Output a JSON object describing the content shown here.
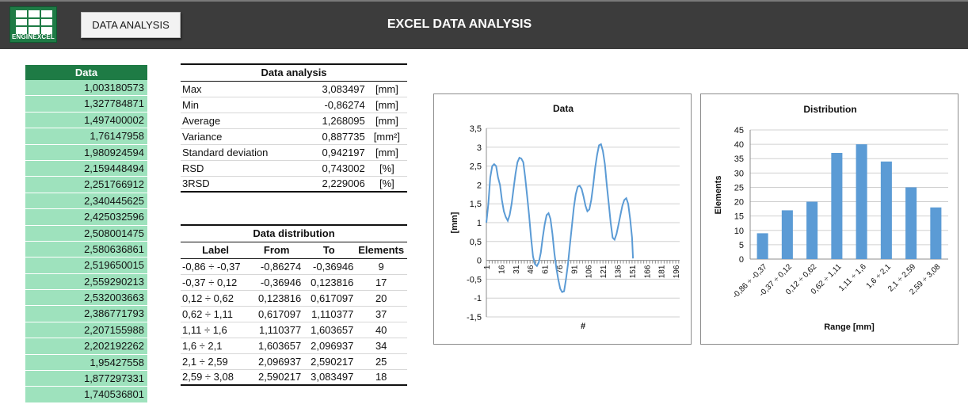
{
  "header": {
    "logo_text": "ENGINEXCEL",
    "button_label": "DATA ANALYSIS",
    "title": "EXCEL DATA ANALYSIS"
  },
  "colors": {
    "header_bg": "#3c3c3c",
    "brand_green": "#1e7b45",
    "data_cell_bg": "#9ee2bd",
    "series_blue": "#5b9bd5"
  },
  "data_column": {
    "header": "Data",
    "values": [
      "1,003180573",
      "1,327784871",
      "1,497400002",
      "1,76147958",
      "1,980924594",
      "2,159448494",
      "2,251766912",
      "2,340445625",
      "2,425032596",
      "2,508001475",
      "2,580636861",
      "2,519650015",
      "2,559290213",
      "2,532003663",
      "2,386771793",
      "2,207155988",
      "2,202192262",
      "1,95427558",
      "1,877297331",
      "1,740536801"
    ]
  },
  "analysis": {
    "title": "Data analysis",
    "rows": [
      {
        "label": "Max",
        "value": "3,083497",
        "unit": "[mm]"
      },
      {
        "label": "Min",
        "value": "-0,86274",
        "unit": "[mm]"
      },
      {
        "label": "Average",
        "value": "1,268095",
        "unit": "[mm]"
      },
      {
        "label": "Variance",
        "value": "0,887735",
        "unit": "[mm²]"
      },
      {
        "label": "Standard deviation",
        "value": "0,942197",
        "unit": "[mm]"
      },
      {
        "label": "RSD",
        "value": "0,743002",
        "unit": "[%]"
      },
      {
        "label": "3RSD",
        "value": "2,229006",
        "unit": "[%]"
      }
    ]
  },
  "distribution": {
    "title": "Data distribution",
    "columns": [
      "Label",
      "From",
      "To",
      "Elements"
    ],
    "rows": [
      {
        "label": "-0,86 ÷ -0,37",
        "from": "-0,86274",
        "to": "-0,36946",
        "elements": "9"
      },
      {
        "label": "-0,37 ÷ 0,12",
        "from": "-0,36946",
        "to": "0,123816",
        "elements": "17"
      },
      {
        "label": "0,12 ÷ 0,62",
        "from": "0,123816",
        "to": "0,617097",
        "elements": "20"
      },
      {
        "label": "0,62 ÷ 1,11",
        "from": "0,617097",
        "to": "1,110377",
        "elements": "37"
      },
      {
        "label": "1,11 ÷ 1,6",
        "from": "1,110377",
        "to": "1,603657",
        "elements": "40"
      },
      {
        "label": "1,6 ÷ 2,1",
        "from": "1,603657",
        "to": "2,096937",
        "elements": "34"
      },
      {
        "label": "2,1 ÷ 2,59",
        "from": "2,096937",
        "to": "2,590217",
        "elements": "25"
      },
      {
        "label": "2,59 ÷ 3,08",
        "from": "2,590217",
        "to": "3,083497",
        "elements": "18"
      }
    ]
  },
  "chart_data": [
    {
      "type": "line",
      "title": "Data",
      "xlabel": "#",
      "ylabel": "[mm]",
      "ylim": [
        -1.5,
        3.5
      ],
      "yticks": [
        "3,5",
        "3",
        "2,5",
        "2",
        "1,5",
        "1",
        "0,5",
        "0",
        "-0,5",
        "-1",
        "-1,5"
      ],
      "xticks": [
        "1",
        "16",
        "31",
        "46",
        "61",
        "76",
        "91",
        "106",
        "121",
        "136",
        "151",
        "166",
        "181",
        "196"
      ],
      "x_range": [
        1,
        200
      ],
      "points": [
        [
          1,
          1.0
        ],
        [
          3,
          1.5
        ],
        [
          5,
          2.2
        ],
        [
          7,
          2.5
        ],
        [
          9,
          2.55
        ],
        [
          11,
          2.5
        ],
        [
          13,
          2.2
        ],
        [
          15,
          2.0
        ],
        [
          17,
          1.6
        ],
        [
          19,
          1.3
        ],
        [
          21,
          1.15
        ],
        [
          23,
          1.05
        ],
        [
          25,
          1.2
        ],
        [
          27,
          1.5
        ],
        [
          29,
          1.9
        ],
        [
          31,
          2.3
        ],
        [
          33,
          2.6
        ],
        [
          35,
          2.72
        ],
        [
          37,
          2.7
        ],
        [
          39,
          2.6
        ],
        [
          41,
          2.2
        ],
        [
          43,
          1.7
        ],
        [
          45,
          1.2
        ],
        [
          47,
          0.6
        ],
        [
          49,
          0.1
        ],
        [
          51,
          -0.1
        ],
        [
          53,
          -0.15
        ],
        [
          55,
          -0.05
        ],
        [
          57,
          0.2
        ],
        [
          59,
          0.6
        ],
        [
          61,
          0.95
        ],
        [
          63,
          1.2
        ],
        [
          65,
          1.25
        ],
        [
          67,
          1.1
        ],
        [
          69,
          0.7
        ],
        [
          71,
          0.2
        ],
        [
          73,
          -0.2
        ],
        [
          75,
          -0.5
        ],
        [
          77,
          -0.75
        ],
        [
          79,
          -0.84
        ],
        [
          81,
          -0.82
        ],
        [
          83,
          -0.5
        ],
        [
          85,
          -0.1
        ],
        [
          87,
          0.4
        ],
        [
          89,
          0.9
        ],
        [
          91,
          1.4
        ],
        [
          93,
          1.75
        ],
        [
          95,
          1.95
        ],
        [
          97,
          1.98
        ],
        [
          99,
          1.9
        ],
        [
          101,
          1.7
        ],
        [
          103,
          1.45
        ],
        [
          105,
          1.3
        ],
        [
          107,
          1.35
        ],
        [
          109,
          1.6
        ],
        [
          111,
          2.0
        ],
        [
          113,
          2.45
        ],
        [
          115,
          2.8
        ],
        [
          117,
          3.05
        ],
        [
          119,
          3.08
        ],
        [
          121,
          2.9
        ],
        [
          123,
          2.55
        ],
        [
          125,
          2.0
        ],
        [
          127,
          1.5
        ],
        [
          129,
          1.0
        ],
        [
          131,
          0.6
        ],
        [
          133,
          0.55
        ],
        [
          135,
          0.7
        ],
        [
          137,
          0.95
        ],
        [
          139,
          1.2
        ],
        [
          141,
          1.45
        ],
        [
          143,
          1.6
        ],
        [
          145,
          1.65
        ],
        [
          147,
          1.5
        ],
        [
          149,
          1.1
        ],
        [
          151,
          0.6
        ],
        [
          152,
          0.05
        ]
      ]
    },
    {
      "type": "bar",
      "title": "Distribution",
      "xlabel": "Range [mm]",
      "ylabel": "Elements",
      "ylim": [
        0,
        45
      ],
      "yticks": [
        "45",
        "40",
        "35",
        "30",
        "25",
        "20",
        "15",
        "10",
        "5",
        "0"
      ],
      "categories": [
        "-0,86 ÷ -0,37",
        "-0,37 ÷ 0,12",
        "0,12 ÷ 0,62",
        "0,62 ÷ 1,11",
        "1,11 ÷ 1,6",
        "1,6 ÷ 2,1",
        "2,1 ÷ 2,59",
        "2,59 ÷ 3,08"
      ],
      "values": [
        9,
        17,
        20,
        37,
        40,
        34,
        25,
        18
      ]
    }
  ]
}
